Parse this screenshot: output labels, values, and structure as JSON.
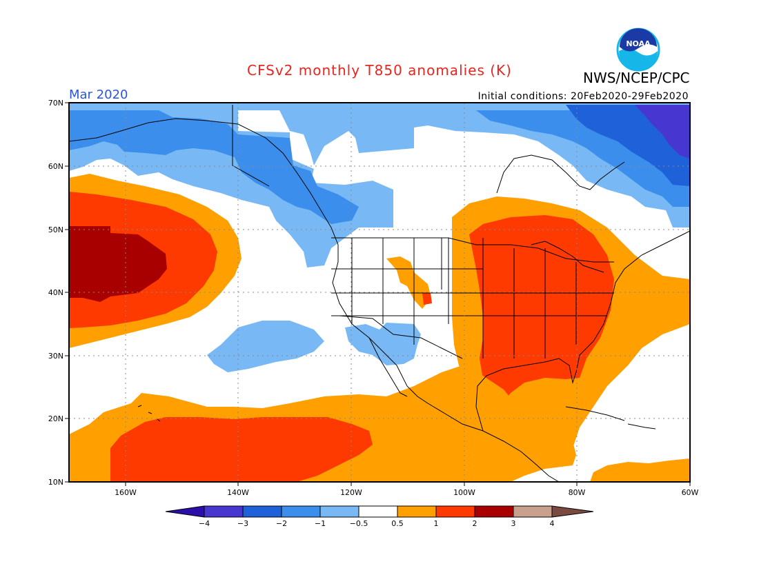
{
  "header": {
    "title": "CFSv2 monthly T850 anomalies (K)",
    "agency": "NWS/NCEP/CPC",
    "logo_text": "NOAA",
    "valid_month": "Mar 2020",
    "initial_conditions": "Initial conditions: 20Feb2020-29Feb2020"
  },
  "axes": {
    "lat_labels": [
      "70N",
      "60N",
      "50N",
      "40N",
      "30N",
      "20N",
      "10N"
    ],
    "lon_labels": [
      "160W",
      "140W",
      "120W",
      "100W",
      "80W",
      "60W"
    ]
  },
  "legend": {
    "tick_labels": [
      "−4",
      "−3",
      "−2",
      "−1",
      "−0.5",
      "0.5",
      "1",
      "2",
      "3",
      "4"
    ],
    "colors": [
      "#2b0fa8",
      "#4836d0",
      "#1f61d8",
      "#3b8eec",
      "#78b9f5",
      "#ffffff",
      "#ff9f00",
      "#ff3a00",
      "#a80000",
      "#c8a08c",
      "#7a4a40"
    ]
  },
  "colors": {
    "title": "#e8251f",
    "month": "#2a57d8",
    "lt_blue": "#78b9f5",
    "blue": "#3b8eec",
    "dk_blue": "#1f61d8",
    "purple": "#4836d0",
    "orange": "#ff9f00",
    "red": "#ff3a00",
    "dk_red": "#a80000"
  }
}
